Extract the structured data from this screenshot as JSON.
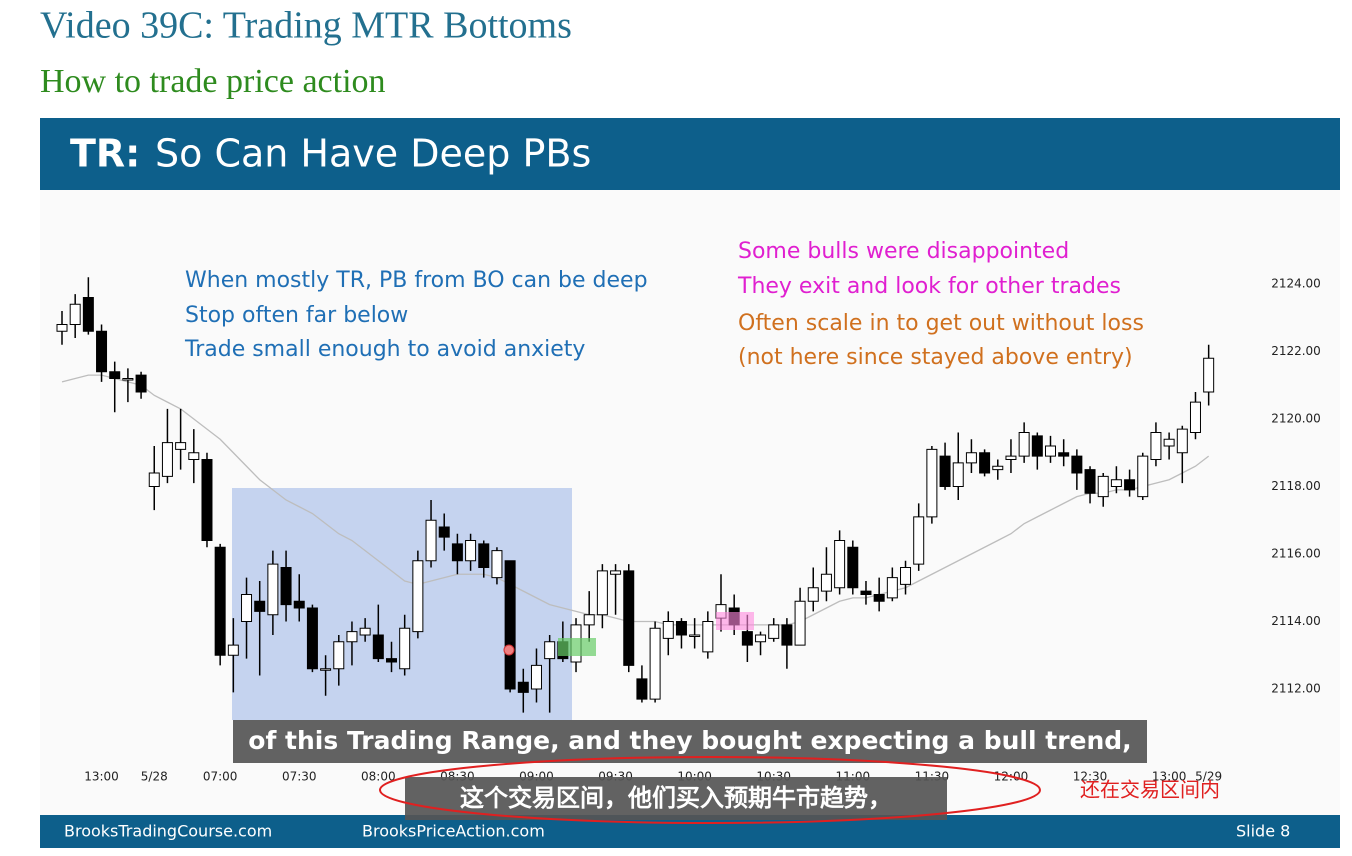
{
  "page": {
    "title": "Video 39C: Trading MTR Bottoms",
    "subtitle": "How to trade price action"
  },
  "slide": {
    "heading_bold": "TR:",
    "heading": "So Can Have Deep PBs",
    "footer_left": "BrooksTradingCourse.com",
    "footer_center": "BrooksPriceAction.com",
    "slide_label": "Slide 8"
  },
  "captions": {
    "english": "of this Trading Range, and they bought expecting a bull trend,",
    "chinese": "这个交易区间，他们买入预期牛市趋势，",
    "note": "还在交易区间内"
  },
  "chart_data": {
    "type": "candlestick",
    "categories": [
      null,
      null,
      null,
      "13:00",
      null,
      null,
      null,
      "5/28",
      null,
      null,
      null,
      null,
      "07:00",
      null,
      null,
      null,
      null,
      null,
      "07:30",
      null,
      null,
      null,
      null,
      null,
      "08:00",
      null,
      null,
      null,
      null,
      null,
      "08:30",
      null,
      null,
      null,
      null,
      null,
      "09:00",
      null,
      null,
      null,
      null,
      null,
      "09:30",
      null,
      null,
      null,
      null,
      null,
      "10:00",
      null,
      null,
      null,
      null,
      null,
      "10:30",
      null,
      null,
      null,
      null,
      null,
      "11:00",
      null,
      null,
      null,
      null,
      null,
      "11:30",
      null,
      null,
      null,
      null,
      null,
      "12:00",
      null,
      null,
      null,
      null,
      null,
      "12:30",
      null,
      null,
      null,
      null,
      null,
      "13:00",
      null,
      null,
      "5/29"
    ],
    "open": [
      2122.6,
      2122.8,
      2123.6,
      2122.6,
      2121.4,
      2121.2,
      2121.3,
      2118.0,
      2118.3,
      2119.1,
      2118.8,
      2118.8,
      2116.2,
      2113.0,
      2114.0,
      2114.6,
      2114.2,
      2115.6,
      2114.6,
      2114.4,
      2112.6,
      2112.6,
      2113.4,
      2113.6,
      2113.6,
      2112.9,
      2112.6,
      2113.7,
      2115.8,
      2116.8,
      2116.3,
      2115.8,
      2116.3,
      2115.3,
      2115.8,
      2112.2,
      2112.0,
      2112.9,
      2113.4,
      2112.8,
      2113.9,
      2114.2,
      2115.4,
      2115.5,
      2112.3,
      2111.7,
      2113.5,
      2114.0,
      2113.6,
      2113.1,
      2114.1,
      2114.4,
      2113.7,
      2113.4,
      2113.5,
      2113.9,
      2113.3,
      2114.6,
      2114.9,
      2115.0,
      2116.2,
      2114.9,
      2114.8,
      2114.7,
      2115.1,
      2115.7,
      2117.1,
      2118.9,
      2118.0,
      2118.7,
      2119.0,
      2118.5,
      2118.8,
      2118.9,
      2119.5,
      2118.9,
      2119.0,
      2118.9,
      2118.5,
      2117.7,
      2118.0,
      2118.2,
      2117.7,
      2118.8,
      2119.2,
      2119.0,
      2119.6,
      2120.8
    ],
    "high": [
      2123.2,
      2123.7,
      2124.2,
      2122.8,
      2121.7,
      2121.5,
      2121.4,
      2119.2,
      2120.3,
      2120.3,
      2119.7,
      2119.0,
      2116.3,
      2114.1,
      2115.3,
      2115.2,
      2116.1,
      2116.1,
      2115.4,
      2114.5,
      2113.0,
      2113.6,
      2114.0,
      2114.1,
      2114.5,
      2113.4,
      2114.2,
      2116.1,
      2117.6,
      2117.2,
      2116.6,
      2116.6,
      2116.4,
      2116.2,
      2115.8,
      2112.6,
      2113.2,
      2113.6,
      2114.0,
      2114.1,
      2114.9,
      2115.7,
      2115.7,
      2115.7,
      2112.7,
      2114.0,
      2114.3,
      2114.1,
      2114.1,
      2114.3,
      2115.4,
      2114.8,
      2114.2,
      2113.7,
      2114.1,
      2114.1,
      2115.0,
      2115.6,
      2116.2,
      2116.7,
      2116.4,
      2115.2,
      2115.3,
      2115.6,
      2115.8,
      2117.5,
      2119.2,
      2119.3,
      2119.6,
      2119.4,
      2119.1,
      2118.8,
      2119.4,
      2119.9,
      2119.6,
      2119.5,
      2119.4,
      2119.1,
      2118.6,
      2118.4,
      2118.6,
      2118.5,
      2119.0,
      2119.9,
      2119.6,
      2119.8,
      2120.8,
      2122.2
    ],
    "low": [
      2122.2,
      2122.4,
      2122.5,
      2121.1,
      2120.2,
      2120.5,
      2120.6,
      2117.3,
      2118.1,
      2118.5,
      2118.1,
      2116.2,
      2112.7,
      2111.9,
      2112.9,
      2112.4,
      2113.6,
      2114.0,
      2114.0,
      2112.5,
      2111.8,
      2112.1,
      2112.7,
      2113.4,
      2112.8,
      2112.5,
      2112.4,
      2113.5,
      2115.6,
      2116.1,
      2115.4,
      2115.5,
      2115.3,
      2115.1,
      2111.9,
      2111.3,
      2111.6,
      2111.3,
      2112.8,
      2112.5,
      2113.4,
      2113.8,
      2114.2,
      2112.5,
      2111.6,
      2111.6,
      2113.0,
      2113.2,
      2113.2,
      2112.9,
      2113.7,
      2113.6,
      2112.8,
      2113.0,
      2113.4,
      2112.6,
      2113.3,
      2114.3,
      2114.6,
      2114.8,
      2114.8,
      2114.5,
      2114.3,
      2114.6,
      2114.8,
      2115.5,
      2116.9,
      2117.9,
      2117.6,
      2118.4,
      2118.3,
      2118.2,
      2118.4,
      2118.7,
      2118.5,
      2118.7,
      2118.6,
      2117.9,
      2117.5,
      2117.4,
      2117.8,
      2117.7,
      2117.6,
      2118.6,
      2118.8,
      2118.1,
      2119.4,
      2120.4
    ],
    "close": [
      2122.8,
      2123.4,
      2122.6,
      2121.4,
      2121.2,
      2121.2,
      2120.8,
      2118.4,
      2119.3,
      2119.3,
      2119.0,
      2116.4,
      2113.0,
      2113.3,
      2114.8,
      2114.3,
      2115.7,
      2114.5,
      2114.4,
      2112.6,
      2112.6,
      2113.4,
      2113.7,
      2113.8,
      2112.9,
      2112.8,
      2113.8,
      2115.8,
      2117.0,
      2116.5,
      2115.8,
      2116.4,
      2115.6,
      2116.1,
      2112.0,
      2111.9,
      2112.7,
      2113.4,
      2112.9,
      2113.9,
      2114.2,
      2115.5,
      2115.5,
      2112.7,
      2111.7,
      2113.8,
      2114.0,
      2113.6,
      2113.6,
      2114.0,
      2114.5,
      2113.9,
      2113.3,
      2113.6,
      2113.9,
      2113.3,
      2114.6,
      2115.0,
      2115.4,
      2116.4,
      2115.0,
      2114.8,
      2114.6,
      2115.3,
      2115.6,
      2117.1,
      2119.1,
      2118.0,
      2118.7,
      2119.0,
      2118.4,
      2118.6,
      2118.9,
      2119.6,
      2118.9,
      2119.2,
      2118.9,
      2118.4,
      2117.8,
      2118.3,
      2118.2,
      2117.9,
      2118.9,
      2119.6,
      2119.4,
      2119.7,
      2120.5,
      2121.8
    ],
    "ma": [
      2121.1,
      2121.2,
      2121.3,
      2121.3,
      2121.2,
      2121.1,
      2121.0,
      2120.7,
      2120.5,
      2120.3,
      2120.0,
      2119.7,
      2119.4,
      2119.0,
      2118.6,
      2118.2,
      2117.9,
      2117.6,
      2117.4,
      2117.2,
      2116.9,
      2116.6,
      2116.4,
      2116.1,
      2115.8,
      2115.5,
      2115.2,
      2115.1,
      2115.2,
      2115.3,
      2115.4,
      2115.4,
      2115.4,
      2115.3,
      2115.1,
      2114.9,
      2114.7,
      2114.5,
      2114.4,
      2114.3,
      2114.2,
      2114.2,
      2114.1,
      2114.0,
      2114.0,
      2114.0,
      2113.9,
      2113.9,
      2113.9,
      2113.9,
      2113.9,
      2113.9,
      2113.9,
      2113.9,
      2113.9,
      2113.9,
      2114.0,
      2114.2,
      2114.4,
      2114.6,
      2114.7,
      2114.7,
      2114.8,
      2114.9,
      2115.0,
      2115.2,
      2115.4,
      2115.6,
      2115.8,
      2116.0,
      2116.2,
      2116.4,
      2116.6,
      2116.9,
      2117.1,
      2117.3,
      2117.5,
      2117.7,
      2117.8,
      2117.8,
      2117.9,
      2117.9,
      2118.0,
      2118.1,
      2118.2,
      2118.4,
      2118.6,
      2118.9
    ],
    "ma_color": "#bdbdbd",
    "ylim": [
      2109.6,
      2126.6
    ],
    "yticks": [
      {
        "value": 2112,
        "label": "2112.00"
      },
      {
        "value": 2114,
        "label": "2114.00"
      },
      {
        "value": 2116,
        "label": "2116.00"
      },
      {
        "value": 2118,
        "label": "2118.00"
      },
      {
        "value": 2120,
        "label": "2120.00"
      },
      {
        "value": 2122,
        "label": "2122.00"
      },
      {
        "value": 2124,
        "label": "2124.00"
      }
    ],
    "annotations": [
      {
        "text": "When mostly TR, PB from BO can be deep",
        "color": "#1f6fb5"
      },
      {
        "text": "Stop often far below",
        "color": "#1f6fb5"
      },
      {
        "text": "Trade small enough to avoid anxiety",
        "color": "#1f6fb5"
      },
      {
        "text": "Some bulls were disappointed",
        "color": "#e01fd0"
      },
      {
        "text": "They exit and look for other trades",
        "color": "#e01fd0"
      },
      {
        "text": "Often scale in to get out without loss",
        "color": "#d0701e"
      },
      {
        "text": "(not here since stayed above entry)",
        "color": "#d0701e"
      }
    ]
  }
}
